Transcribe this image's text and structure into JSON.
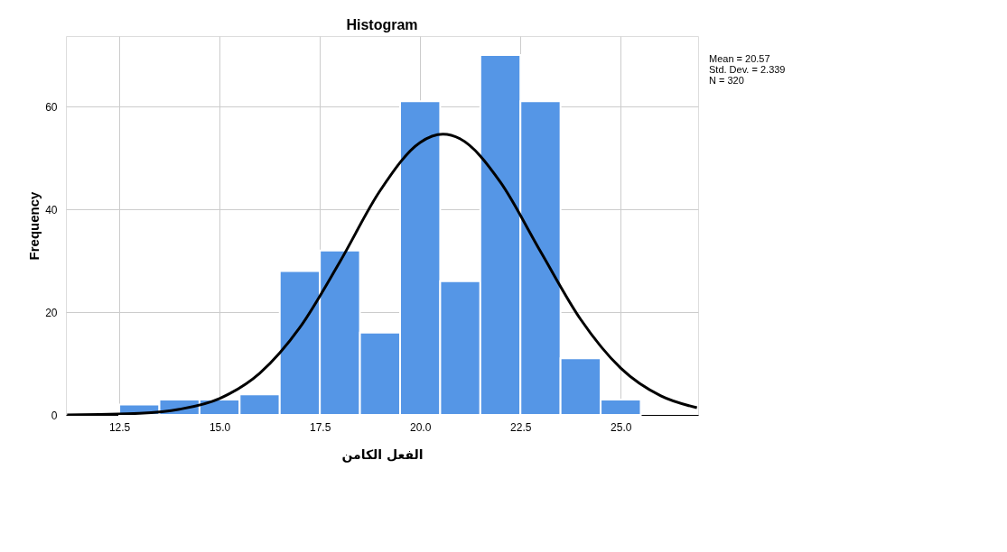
{
  "chart_data": {
    "type": "histogram",
    "title": "Histogram",
    "xlabel": "الفعل الكامن",
    "ylabel": "Frequency",
    "bins": [
      12.5,
      13.5,
      14.5,
      15.5,
      16.5,
      17.5,
      18.5,
      19.5,
      20.5,
      21.5,
      22.5,
      23.5,
      24.5,
      25.5
    ],
    "values": [
      2,
      3,
      3,
      4,
      28,
      32,
      16,
      61,
      26,
      70,
      61,
      11,
      3
    ],
    "color": "#5596e6",
    "series": [
      {
        "type": "line",
        "color": "#000000",
        "x": [
          11.2,
          12,
          13,
          14,
          15,
          16,
          17,
          18,
          19,
          20,
          20.57,
          21,
          22,
          23,
          24,
          25,
          26,
          26.9
        ],
        "values": [
          0,
          0.1,
          0.3,
          1.1,
          3.2,
          8.1,
          17.0,
          29.8,
          43.6,
          53.0,
          54.6,
          53.7,
          45.3,
          31.8,
          18.6,
          9.1,
          3.7,
          1.4
        ]
      }
    ],
    "xlim": [
      11.17,
      26.93
    ],
    "xticks": [
      {
        "value": 12.5,
        "label": "12.5"
      },
      {
        "value": 15,
        "label": "15.0"
      },
      {
        "value": 17.5,
        "label": "17.5"
      },
      {
        "value": 20,
        "label": "20.0"
      },
      {
        "value": 22.5,
        "label": "22.5"
      },
      {
        "value": 25,
        "label": "25.0"
      }
    ],
    "ylim": [
      0,
      73.7
    ],
    "yticks": [
      0,
      20,
      40,
      60
    ],
    "grid": true,
    "annotations": [
      "Mean = 20.57",
      "Std. Dev. = 2.339",
      "N = 320"
    ]
  }
}
